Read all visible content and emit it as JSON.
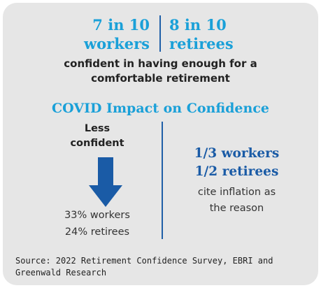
{
  "top_stats": {
    "workers_line1": "7 in 10",
    "workers_line2": "workers",
    "retirees_line1": "8 in 10",
    "retirees_line2": "retirees"
  },
  "confidence_caption": {
    "line1": "confident in having enough for a",
    "line2": "comfortable retirement"
  },
  "covid": {
    "title": "COVID Impact on Confidence",
    "less_line1": "Less",
    "less_line2": "confident",
    "arrow_icon": "down-arrow-icon",
    "arrow_color": "#1a5ba6",
    "workers_pct": "33% workers",
    "retirees_pct": "24% retirees",
    "ratio_workers": "1/3 workers",
    "ratio_retirees": "1/2 retirees",
    "cite_line1": "cite inflation as",
    "cite_line2": "the reason"
  },
  "source": {
    "line1": "Source: 2022 Retirement Confidence Survey, EBRI and",
    "line2": "Greenwald Research"
  },
  "colors": {
    "accent_light_blue": "#1aa0d8",
    "accent_dark_blue": "#1a5ba6",
    "card_background": "#e6e6e6"
  }
}
